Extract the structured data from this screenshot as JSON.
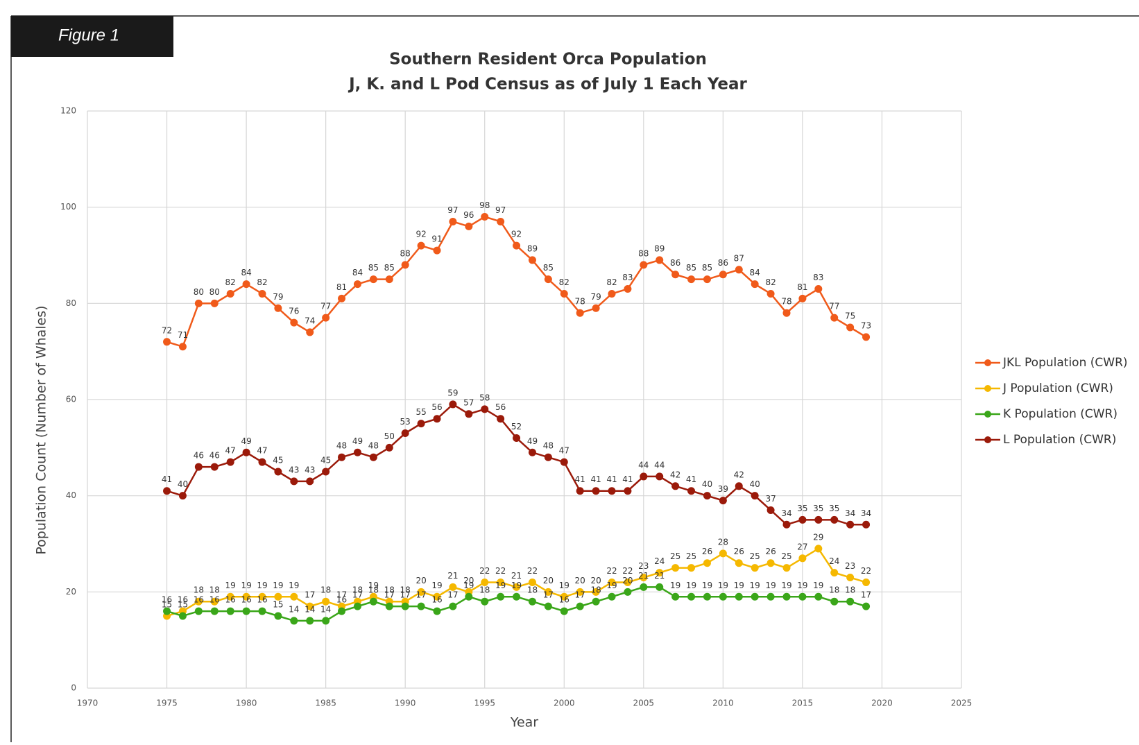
{
  "figure_label": "Figure 1",
  "chart_data": {
    "type": "line",
    "title": [
      "Southern Resident Orca Population",
      "J, K. and L Pod Census as of July 1 Each Year"
    ],
    "x_label": "Year",
    "y_label": "Population Count (Number of Whales)",
    "x": [
      1975,
      1976,
      1977,
      1978,
      1979,
      1980,
      1981,
      1982,
      1983,
      1984,
      1985,
      1986,
      1987,
      1988,
      1989,
      1990,
      1991,
      1992,
      1993,
      1994,
      1995,
      1996,
      1997,
      1998,
      1999,
      2000,
      2001,
      2002,
      2003,
      2004,
      2005,
      2006,
      2007,
      2008,
      2009,
      2010,
      2011,
      2012,
      2013,
      2014,
      2015,
      2016,
      2017,
      2018,
      2019
    ],
    "series": [
      {
        "name": "JKL Population (CWR)",
        "color": "#f05a1a",
        "values": [
          72,
          71,
          80,
          80,
          82,
          84,
          82,
          79,
          76,
          74,
          77,
          81,
          84,
          85,
          85,
          88,
          92,
          91,
          97,
          96,
          98,
          97,
          92,
          89,
          85,
          82,
          78,
          79,
          82,
          83,
          88,
          89,
          86,
          85,
          85,
          86,
          87,
          84,
          82,
          78,
          81,
          83,
          77,
          75,
          73
        ]
      },
      {
        "name": "J Population (CWR)",
        "color": "#f5b800",
        "values": [
          15,
          16,
          18,
          18,
          19,
          19,
          19,
          19,
          19,
          17,
          18,
          17,
          18,
          19,
          18,
          18,
          20,
          19,
          21,
          20,
          22,
          22,
          21,
          22,
          20,
          19,
          20,
          20,
          22,
          22,
          23,
          24,
          25,
          25,
          26,
          28,
          26,
          25,
          26,
          25,
          27,
          29,
          24,
          23,
          22
        ]
      },
      {
        "name": "K Population (CWR)",
        "color": "#3aa619",
        "values": [
          16,
          15,
          16,
          16,
          16,
          16,
          16,
          15,
          14,
          14,
          14,
          16,
          17,
          18,
          17,
          17,
          17,
          16,
          17,
          19,
          18,
          19,
          19,
          18,
          17,
          16,
          17,
          18,
          19,
          20,
          21,
          21,
          19,
          19,
          19,
          19,
          19,
          19,
          19,
          19,
          19,
          19,
          18,
          18,
          17
        ]
      },
      {
        "name": "L Population (CWR)",
        "color": "#9b1a0a",
        "values": [
          41,
          40,
          46,
          46,
          47,
          49,
          47,
          45,
          43,
          43,
          45,
          48,
          49,
          48,
          50,
          53,
          55,
          56,
          59,
          57,
          58,
          56,
          52,
          49,
          48,
          47,
          41,
          41,
          41,
          41,
          44,
          44,
          42,
          41,
          40,
          39,
          42,
          40,
          37,
          34,
          35,
          35,
          35,
          34,
          34
        ]
      }
    ],
    "xlim": [
      1970,
      2025
    ],
    "xticks": [
      1970,
      1975,
      1980,
      1985,
      1990,
      1995,
      2000,
      2005,
      2010,
      2015,
      2020,
      2025
    ],
    "ylim": [
      0,
      120
    ],
    "yticks": [
      0,
      20,
      40,
      60,
      80,
      100,
      120
    ],
    "grid": true,
    "data_labels": true,
    "legend": "right"
  }
}
